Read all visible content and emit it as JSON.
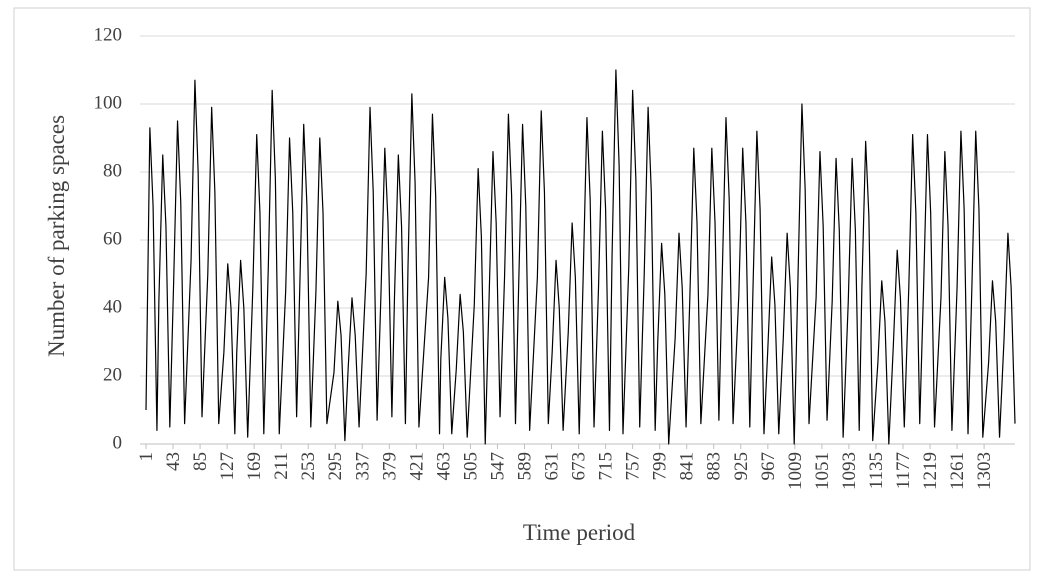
{
  "chart_data": {
    "type": "line",
    "x_label": "Time period",
    "y_label": "Number of parking spaces",
    "x": [
      1,
      7,
      12,
      18,
      21,
      27,
      32,
      38,
      44,
      50,
      55,
      61,
      71,
      77,
      82,
      88,
      97,
      103,
      108,
      114,
      122,
      128,
      133,
      139,
      142,
      148,
      153,
      159,
      167,
      173,
      178,
      184,
      191,
      197,
      202,
      208,
      218,
      224,
      229,
      235,
      240,
      246,
      251,
      257,
      265,
      271,
      276,
      282,
      293,
      299,
      304,
      310,
      315,
      321,
      326,
      332,
      343,
      349,
      354,
      360,
      366,
      372,
      377,
      383,
      387,
      393,
      398,
      404,
      408,
      414,
      419,
      425,
      440,
      446,
      451,
      457,
      459,
      465,
      470,
      476,
      483,
      489,
      494,
      500,
      511,
      517,
      522,
      528,
      534,
      540,
      545,
      551,
      558,
      564,
      569,
      575,
      580,
      586,
      591,
      597,
      609,
      615,
      620,
      626,
      632,
      638,
      643,
      649,
      657,
      663,
      668,
      674,
      680,
      686,
      691,
      697,
      704,
      710,
      715,
      721,
      725,
      731,
      736,
      742,
      751,
      757,
      762,
      768,
      775,
      781,
      786,
      792,
      796,
      802,
      807,
      813,
      823,
      829,
      834,
      840,
      846,
      852,
      857,
      863,
      874,
      880,
      885,
      891,
      896,
      902,
      907,
      913,
      922,
      928,
      933,
      939,
      944,
      950,
      955,
      961,
      967,
      973,
      978,
      984,
      991,
      997,
      1002,
      1008,
      1014,
      1020,
      1025,
      1031,
      1042,
      1048,
      1053,
      1059,
      1067,
      1073,
      1078,
      1084,
      1092,
      1098,
      1103,
      1109,
      1113,
      1119,
      1124,
      1130,
      1138,
      1144,
      1149,
      1155,
      1162,
      1168,
      1173,
      1179,
      1186,
      1192,
      1197,
      1203,
      1209,
      1215,
      1220,
      1226,
      1236,
      1242,
      1247,
      1253,
      1261,
      1267,
      1272,
      1278,
      1284,
      1290,
      1295,
      1301,
      1310,
      1316,
      1321,
      1327,
      1334,
      1340,
      1345,
      1351
    ],
    "values": [
      10,
      93,
      70,
      4,
      42,
      85,
      64,
      5,
      48,
      95,
      71,
      6,
      54,
      107,
      80,
      8,
      50,
      99,
      74,
      6,
      27,
      53,
      40,
      3,
      27,
      54,
      40,
      2,
      46,
      91,
      68,
      3,
      52,
      104,
      78,
      3,
      45,
      90,
      68,
      8,
      47,
      94,
      70,
      5,
      45,
      90,
      68,
      6,
      21,
      42,
      32,
      1,
      22,
      43,
      32,
      5,
      50,
      99,
      74,
      7,
      44,
      87,
      65,
      8,
      43,
      85,
      64,
      6,
      52,
      103,
      77,
      5,
      49,
      97,
      73,
      3,
      25,
      49,
      37,
      3,
      22,
      44,
      33,
      2,
      41,
      81,
      61,
      0,
      43,
      86,
      65,
      8,
      49,
      97,
      73,
      6,
      47,
      94,
      70,
      4,
      49,
      98,
      74,
      6,
      27,
      54,
      40,
      4,
      33,
      65,
      49,
      3,
      48,
      96,
      72,
      5,
      46,
      92,
      69,
      4,
      55,
      110,
      82,
      3,
      52,
      104,
      78,
      5,
      50,
      99,
      74,
      4,
      30,
      59,
      44,
      0,
      31,
      62,
      46,
      5,
      44,
      87,
      65,
      6,
      44,
      87,
      65,
      7,
      48,
      96,
      72,
      6,
      44,
      87,
      65,
      5,
      46,
      92,
      69,
      3,
      28,
      55,
      41,
      3,
      31,
      62,
      46,
      0,
      50,
      100,
      75,
      6,
      43,
      86,
      64,
      7,
      42,
      84,
      63,
      2,
      42,
      84,
      63,
      4,
      45,
      89,
      67,
      1,
      24,
      48,
      36,
      0,
      29,
      57,
      43,
      5,
      46,
      91,
      68,
      6,
      46,
      91,
      68,
      5,
      43,
      86,
      64,
      4,
      46,
      92,
      69,
      3,
      46,
      92,
      69,
      2,
      24,
      48,
      36,
      2,
      31,
      62,
      46,
      6
    ],
    "color": "#000000",
    "xlim": [
      1,
      1351
    ],
    "ylim": [
      0,
      120
    ],
    "xticks": [
      1,
      43,
      85,
      127,
      169,
      211,
      253,
      295,
      337,
      379,
      421,
      463,
      505,
      547,
      589,
      631,
      673,
      715,
      757,
      799,
      841,
      883,
      925,
      967,
      1009,
      1051,
      1093,
      1135,
      1177,
      1219,
      1261,
      1303
    ],
    "yticks": [
      0,
      20,
      40,
      60,
      80,
      100,
      120
    ],
    "grid": true
  }
}
